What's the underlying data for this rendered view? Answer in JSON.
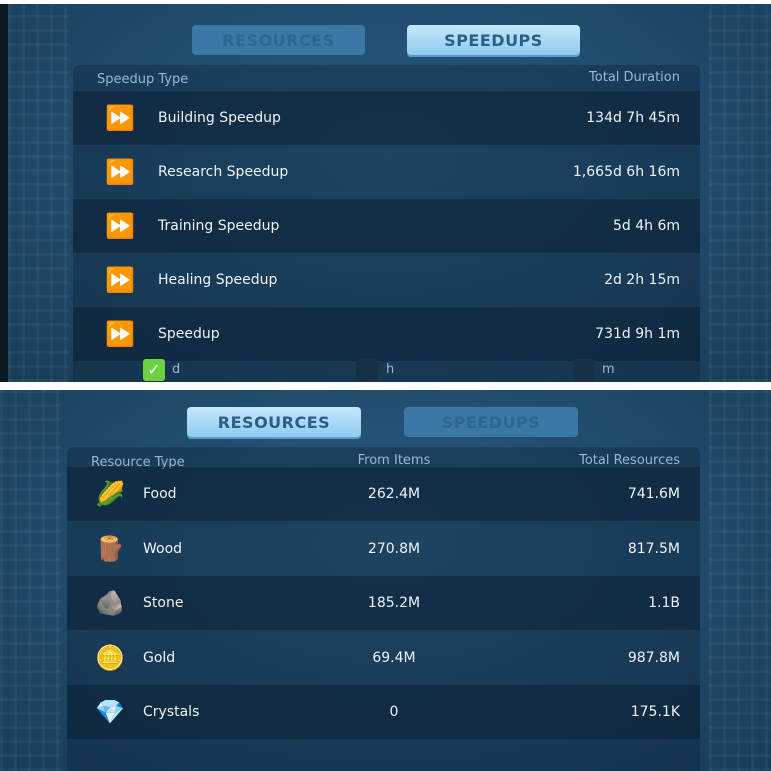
{
  "speedups_panel": {
    "tabs": {
      "resources": "RESOURCES",
      "speedups": "SPEEDUPS",
      "active": "speedups"
    },
    "headers": {
      "type": "Speedup Type",
      "total": "Total Duration"
    },
    "rows": [
      {
        "name": "Building Speedup",
        "total": "134d 7h 45m",
        "icon": "building-speedup-icon"
      },
      {
        "name": "Research Speedup",
        "total": "1,665d 6h 16m",
        "icon": "research-speedup-icon"
      },
      {
        "name": "Training Speedup",
        "total": "5d 4h 6m",
        "icon": "training-speedup-icon"
      },
      {
        "name": "Healing Speedup",
        "total": "2d 2h 15m",
        "icon": "healing-speedup-icon"
      },
      {
        "name": "Speedup",
        "total": "731d 9h 1m",
        "icon": "speedup-icon"
      }
    ],
    "units": [
      {
        "label": "d",
        "checked": true
      },
      {
        "label": "h",
        "checked": false
      },
      {
        "label": "m",
        "checked": false
      }
    ]
  },
  "resources_panel": {
    "tabs": {
      "resources": "RESOURCES",
      "speedups": "SPEEDUPS",
      "active": "resources"
    },
    "headers": {
      "type": "Resource Type",
      "from": "From Items",
      "total": "Total Resources"
    },
    "rows": [
      {
        "name": "Food",
        "from": "262.4M",
        "total": "741.6M",
        "icon": "corn-icon"
      },
      {
        "name": "Wood",
        "from": "270.8M",
        "total": "817.5M",
        "icon": "log-icon"
      },
      {
        "name": "Stone",
        "from": "185.2M",
        "total": "1.1B",
        "icon": "stone-icon"
      },
      {
        "name": "Gold",
        "from": "69.4M",
        "total": "987.8M",
        "icon": "gold-coin-icon"
      },
      {
        "name": "Crystals",
        "from": "0",
        "total": "175.1K",
        "icon": "crystal-icon"
      }
    ]
  }
}
